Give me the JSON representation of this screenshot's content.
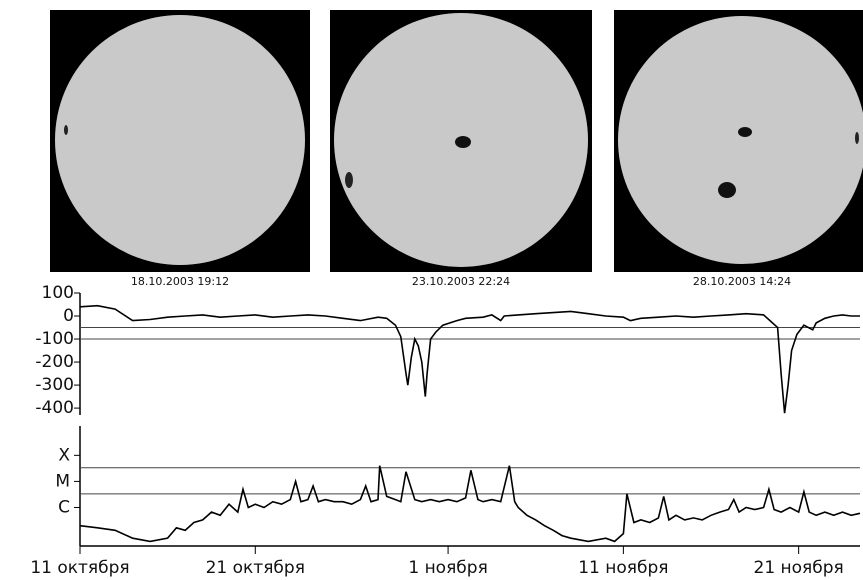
{
  "images": [
    {
      "caption": "18.10.2003 19:12"
    },
    {
      "caption": "23.10.2003 22:24"
    },
    {
      "caption": "28.10.2003 14:24"
    }
  ],
  "chart_data": [
    {
      "type": "line",
      "color": "#000000",
      "xlim": [
        0,
        44.5
      ],
      "ylim": [
        -430,
        100
      ],
      "yticks": [
        100,
        0,
        -100,
        -200,
        -300,
        -400
      ],
      "hlines": [
        -50,
        -100
      ],
      "x": [
        0,
        1,
        2,
        3,
        4,
        5,
        6,
        7,
        8,
        9,
        10,
        11,
        12,
        13,
        14,
        15,
        16,
        17,
        17.5,
        18,
        18.3,
        18.6,
        18.7,
        18.9,
        19.1,
        19.3,
        19.5,
        19.7,
        19.8,
        20,
        20.3,
        20.7,
        21.5,
        22,
        23,
        23.5,
        24,
        24.2,
        25,
        26,
        27,
        28,
        29,
        30,
        31,
        31.4,
        32,
        33,
        34,
        35,
        36,
        37,
        38,
        39,
        39.8,
        40,
        40.2,
        40.4,
        40.6,
        40.9,
        41.3,
        41.8,
        42,
        42.5,
        43,
        43.5,
        44,
        44.5
      ],
      "values": [
        40,
        45,
        30,
        -20,
        -15,
        -5,
        0,
        5,
        -5,
        0,
        5,
        -5,
        0,
        5,
        0,
        -10,
        -20,
        -5,
        -10,
        -40,
        -90,
        -250,
        -300,
        -180,
        -100,
        -130,
        -200,
        -350,
        -250,
        -100,
        -70,
        -40,
        -20,
        -10,
        -5,
        5,
        -20,
        0,
        5,
        10,
        15,
        20,
        10,
        0,
        -5,
        -20,
        -10,
        -5,
        0,
        -5,
        0,
        5,
        10,
        5,
        -50,
        -250,
        -422,
        -300,
        -150,
        -80,
        -40,
        -60,
        -30,
        -10,
        0,
        5,
        0,
        0
      ]
    },
    {
      "type": "line",
      "color": "#000000",
      "log": true,
      "xlim": [
        0,
        44.5
      ],
      "ylim": [
        1e-07,
        0.004
      ],
      "yticks": [
        {
          "value": 0.0003,
          "label": "X"
        },
        {
          "value": 3e-05,
          "label": "M"
        },
        {
          "value": 3e-06,
          "label": "C"
        }
      ],
      "hlines": [
        0.0001,
        1e-05
      ],
      "xticks": [
        {
          "value": 0,
          "label": "11 октября"
        },
        {
          "value": 10,
          "label": "21 октября"
        },
        {
          "value": 21,
          "label": "1 ноября"
        },
        {
          "value": 31,
          "label": "11 ноября"
        },
        {
          "value": 41,
          "label": "21 ноября"
        }
      ],
      "x": [
        0,
        1,
        2,
        3,
        4,
        5,
        5.5,
        6,
        6.5,
        7,
        7.5,
        8,
        8.5,
        9,
        9.3,
        9.6,
        10,
        10.5,
        11,
        11.5,
        12,
        12.3,
        12.6,
        13,
        13.3,
        13.6,
        14,
        14.5,
        15,
        15.5,
        16,
        16.3,
        16.6,
        17,
        17.1,
        17.5,
        18,
        18.3,
        18.6,
        19.1,
        19.5,
        20,
        20.5,
        21,
        21.5,
        22,
        22.3,
        22.7,
        23,
        23.5,
        24,
        24.5,
        24.8,
        25,
        25.5,
        26,
        26.5,
        27,
        27.5,
        28,
        29,
        30,
        30.5,
        31,
        31.2,
        31.6,
        32,
        32.5,
        33,
        33.3,
        33.6,
        34,
        34.5,
        35,
        35.5,
        36,
        36.5,
        37,
        37.3,
        37.6,
        38,
        38.5,
        39,
        39.3,
        39.6,
        40,
        40.5,
        41,
        41.3,
        41.6,
        42,
        42.5,
        43,
        43.5,
        44,
        44.5
      ],
      "values": [
        6e-07,
        5e-07,
        4e-07,
        2e-07,
        1.5e-07,
        2e-07,
        5e-07,
        4e-07,
        8e-07,
        1e-06,
        2e-06,
        1.5e-06,
        4e-06,
        2e-06,
        1.5e-05,
        3e-06,
        4e-06,
        3e-06,
        5e-06,
        4e-06,
        6e-06,
        3e-05,
        5e-06,
        6e-06,
        2e-05,
        5e-06,
        6e-06,
        5e-06,
        5e-06,
        4e-06,
        6e-06,
        2e-05,
        5e-06,
        6e-06,
        0.00012,
        8e-06,
        6e-06,
        5e-06,
        7e-05,
        6e-06,
        5e-06,
        6e-06,
        5e-06,
        6e-06,
        5e-06,
        7e-06,
        8e-05,
        6e-06,
        5e-06,
        6e-06,
        5e-06,
        0.00012,
        5e-06,
        3e-06,
        1.5e-06,
        1e-06,
        6e-07,
        4e-07,
        2.5e-07,
        2e-07,
        1.5e-07,
        2e-07,
        1.5e-07,
        3e-07,
        1e-05,
        8e-07,
        1e-06,
        8e-07,
        1.2e-06,
        8e-06,
        1e-06,
        1.5e-06,
        1e-06,
        1.2e-06,
        1e-06,
        1.5e-06,
        2e-06,
        2.5e-06,
        6e-06,
        2e-06,
        3e-06,
        2.5e-06,
        3e-06,
        1.5e-05,
        2.5e-06,
        2e-06,
        3e-06,
        2e-06,
        1.2e-05,
        2e-06,
        1.5e-06,
        2e-06,
        1.5e-06,
        2e-06,
        1.5e-06,
        1.8e-06
      ]
    }
  ]
}
